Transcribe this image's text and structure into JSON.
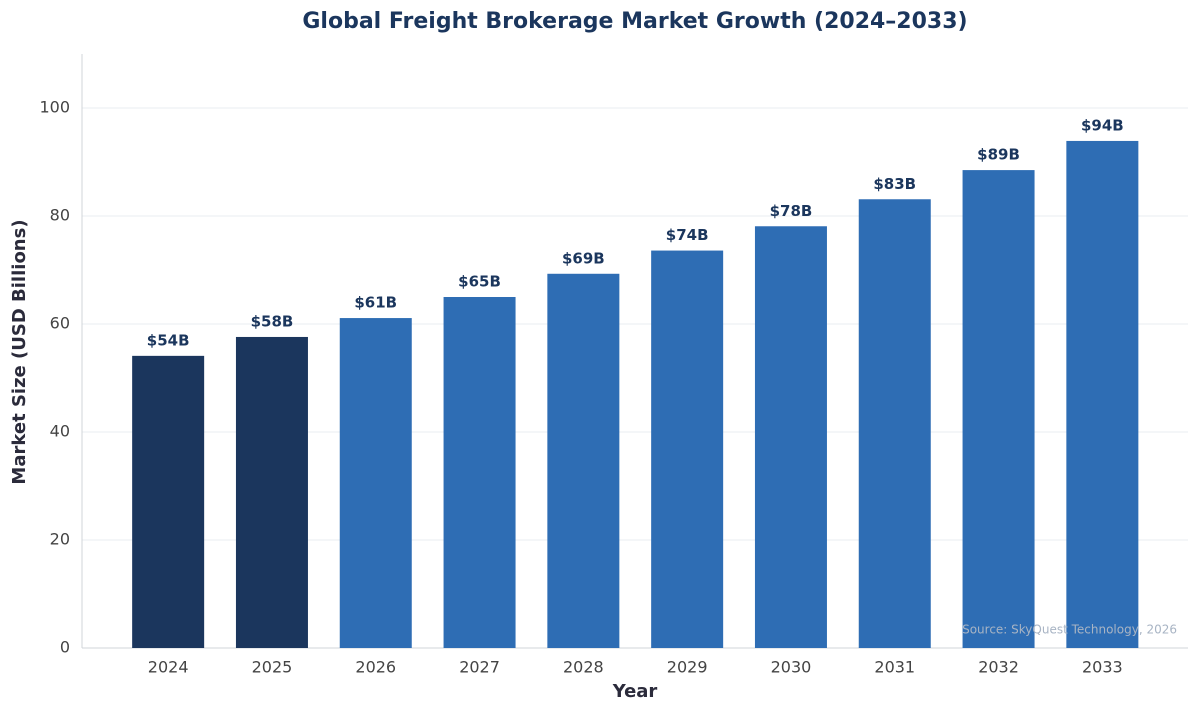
{
  "chart_data": {
    "type": "bar",
    "title": "Global Freight Brokerage Market Growth (2024–2033)",
    "x_label": "Year",
    "y_label": "Market Size (USD Billions)",
    "annotation": "Source: SkyQuest Technology, 2026",
    "categories": [
      "2024",
      "2025",
      "2026",
      "2027",
      "2028",
      "2029",
      "2030",
      "2031",
      "2032",
      "2033"
    ],
    "values": [
      54.1,
      57.6,
      61.1,
      65.0,
      69.3,
      73.6,
      78.1,
      83.1,
      88.5,
      93.9
    ],
    "value_labels": [
      "$54B",
      "$58B",
      "$61B",
      "$65B",
      "$69B",
      "$74B",
      "$78B",
      "$83B",
      "$89B",
      "$94B"
    ],
    "colors": [
      "#1b365d",
      "#1b365d",
      "#2e6db4",
      "#2e6db4",
      "#2e6db4",
      "#2e6db4",
      "#2e6db4",
      "#2e6db4",
      "#2e6db4",
      "#2e6db4"
    ],
    "ylim": [
      0,
      110
    ],
    "yticks": [
      0,
      20,
      40,
      60,
      80,
      100
    ],
    "grid": true
  }
}
